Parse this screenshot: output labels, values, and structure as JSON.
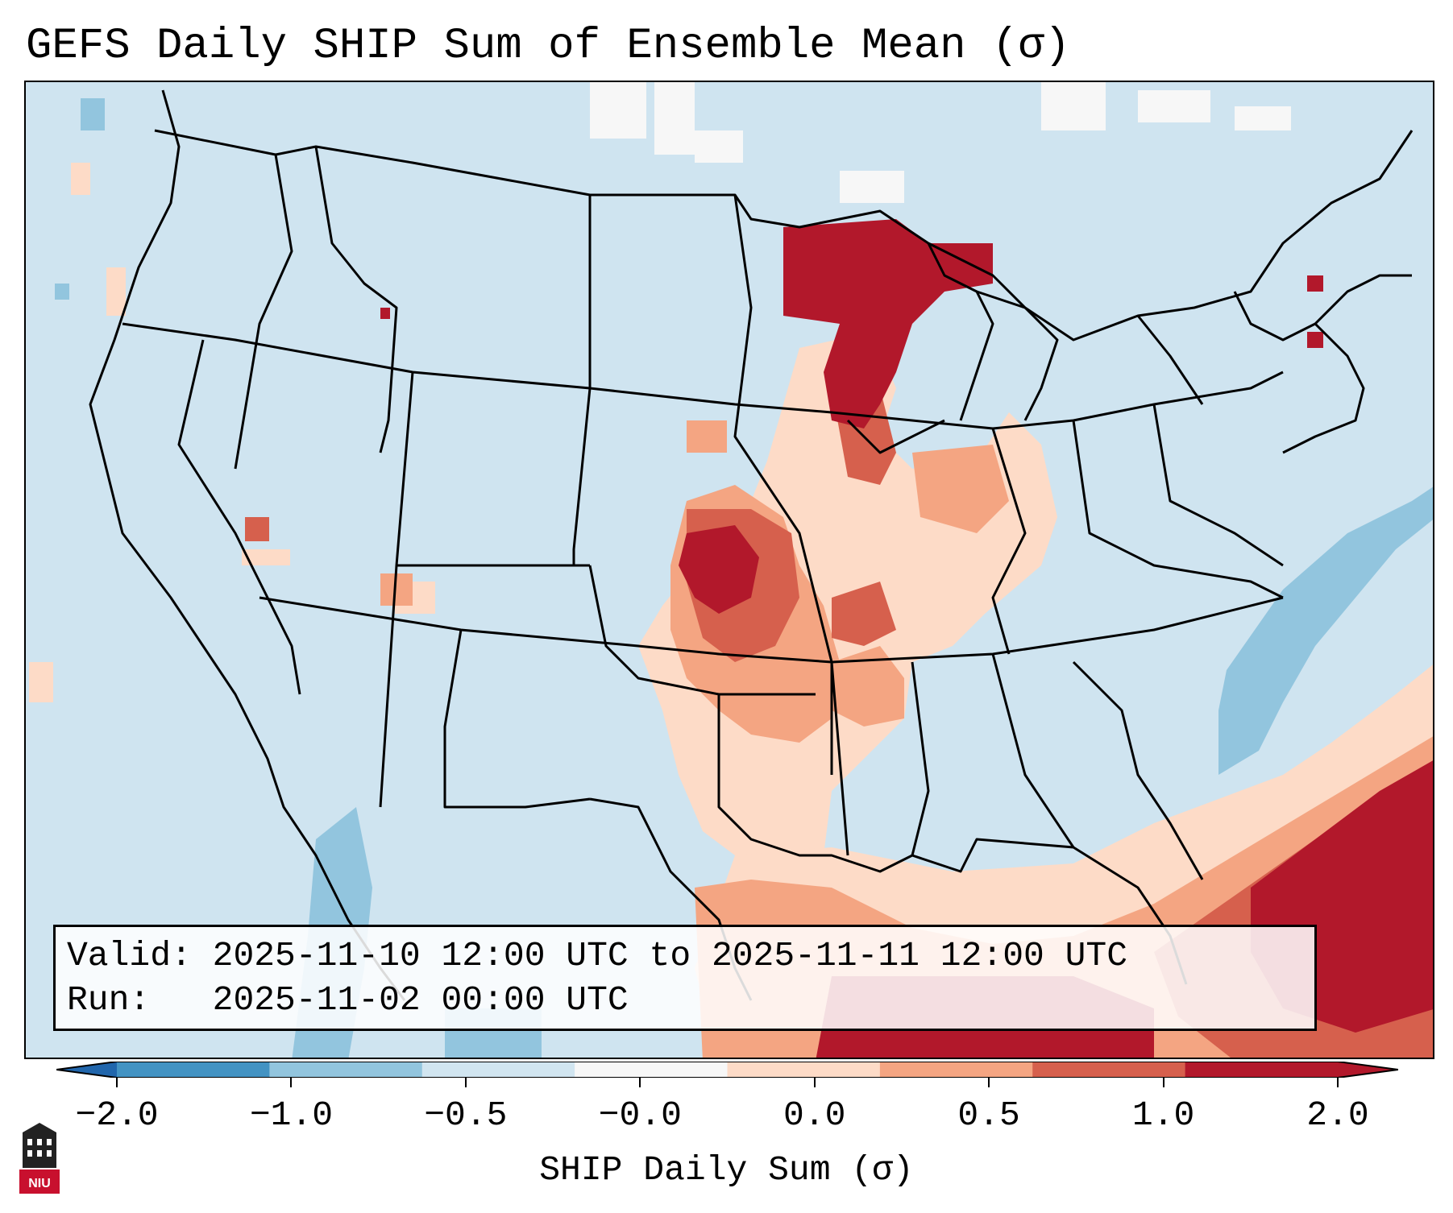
{
  "title": "GEFS Daily SHIP Sum of Ensemble Mean (σ)",
  "info": {
    "valid_label": "Valid:",
    "valid_value": "2025-11-10 12:00 UTC to 2025-11-11 12:00 UTC",
    "run_label": "Run:  ",
    "run_value": "2025-11-02 00:00 UTC"
  },
  "colorbar": {
    "label": "SHIP Daily Sum (σ)",
    "ticks": [
      "−2.0",
      "−1.0",
      "−0.5",
      "−0.0",
      "0.0",
      "0.5",
      "1.0",
      "2.0"
    ],
    "colors": [
      "#4393c3",
      "#92c5de",
      "#d1e5f0",
      "#f7f7f7",
      "#fddbc7",
      "#f4a582",
      "#d6604d",
      "#b2182b"
    ],
    "extend": "both"
  },
  "logo": {
    "text": "NIU"
  },
  "palette": {
    "background": "#cfe4f0",
    "land_lines": "#000000"
  }
}
